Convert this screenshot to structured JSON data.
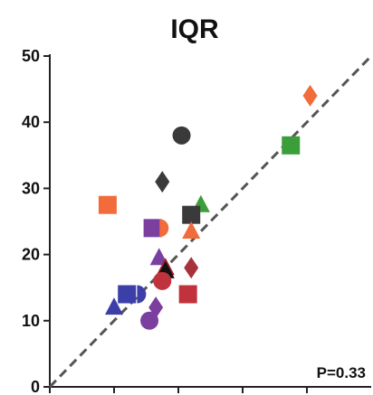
{
  "chart_data": {
    "type": "scatter",
    "title": "IQR",
    "xlabel": "",
    "ylabel": "",
    "ylim": [
      0,
      50
    ],
    "xlim": [
      0,
      50
    ],
    "yticks": [
      0,
      10,
      20,
      30,
      40,
      50
    ],
    "xticks": [
      0,
      10,
      20,
      30,
      40
    ],
    "show_x_tick_labels": false,
    "grid": false,
    "legend": "none",
    "reference_line": {
      "type": "identity",
      "style": "dashed",
      "color": "#555555"
    },
    "annotation": "P=0.33",
    "points": [
      {
        "x": 40.5,
        "y": 44,
        "shape": "diamond",
        "color": "#F26B3A"
      },
      {
        "x": 37.5,
        "y": 36.5,
        "shape": "square",
        "color": "#3B9E3B"
      },
      {
        "x": 20.5,
        "y": 38,
        "shape": "circle",
        "color": "#3A3A3A"
      },
      {
        "x": 17.5,
        "y": 31,
        "shape": "diamond",
        "color": "#3A3A3A"
      },
      {
        "x": 9,
        "y": 27.5,
        "shape": "square",
        "color": "#F26B3A"
      },
      {
        "x": 23.5,
        "y": 27.5,
        "shape": "triangle",
        "color": "#3B9E3B"
      },
      {
        "x": 22,
        "y": 26,
        "shape": "square",
        "color": "#3A3A3A"
      },
      {
        "x": 16,
        "y": 24,
        "shape": "square",
        "color": "#7B3FA0"
      },
      {
        "x": 17.5,
        "y": 24,
        "shape": "half-circle",
        "color": "#F26B3A"
      },
      {
        "x": 22,
        "y": 23.5,
        "shape": "triangle",
        "color": "#F26B3A"
      },
      {
        "x": 17,
        "y": 19.5,
        "shape": "triangle",
        "color": "#7B3FA0"
      },
      {
        "x": 18,
        "y": 18,
        "shape": "triangle",
        "color": "#A01F2E"
      },
      {
        "x": 22,
        "y": 18,
        "shape": "diamond",
        "color": "#A8323C"
      },
      {
        "x": 18,
        "y": 17.5,
        "shape": "triangle",
        "color": "#111111"
      },
      {
        "x": 17.5,
        "y": 16,
        "shape": "circle",
        "color": "#C0323C"
      },
      {
        "x": 12,
        "y": 14,
        "shape": "square",
        "color": "#3C3FA8"
      },
      {
        "x": 14,
        "y": 14,
        "shape": "half-circle",
        "color": "#3C3FA8"
      },
      {
        "x": 21.5,
        "y": 14,
        "shape": "square",
        "color": "#C0323C"
      },
      {
        "x": 16.5,
        "y": 12,
        "shape": "diamond",
        "color": "#7B3FA0"
      },
      {
        "x": 10,
        "y": 12,
        "shape": "triangle",
        "color": "#3C3FA8"
      },
      {
        "x": 15.5,
        "y": 10,
        "shape": "circle",
        "color": "#7B3FA0"
      }
    ]
  }
}
